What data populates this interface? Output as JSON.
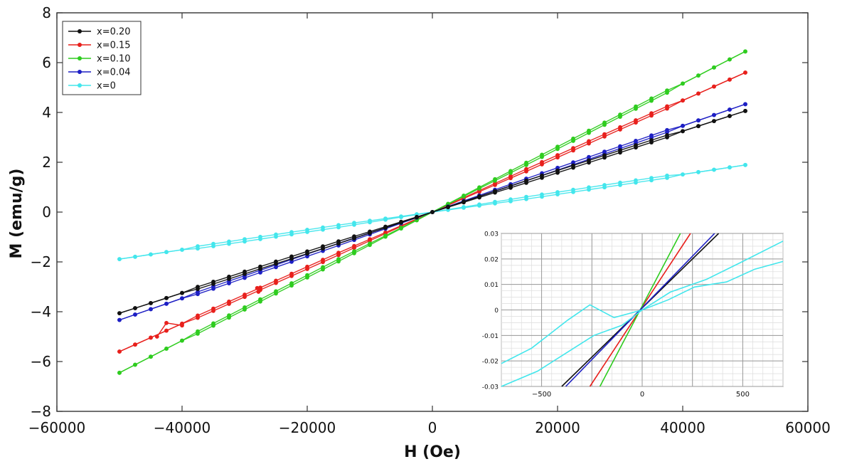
{
  "chart_data": {
    "type": "line",
    "xlabel": "H (Oe)",
    "ylabel": "M (emu/g)",
    "xlim": [
      -60000,
      60000
    ],
    "ylim": [
      -8,
      8
    ],
    "xticks": [
      -60000,
      -40000,
      -20000,
      0,
      20000,
      40000,
      60000
    ],
    "yticks": [
      -8,
      -6,
      -4,
      -2,
      0,
      2,
      4,
      6,
      8
    ],
    "grid": false,
    "legend_position": "top-left",
    "series": [
      {
        "name": "x=0.20",
        "color": "#111111",
        "slope_emu_g_per_Oe": 8.12e-05
      },
      {
        "name": "x=0.15",
        "color": "#e8201c",
        "slope_emu_g_per_Oe": 0.000112
      },
      {
        "name": "x=0.10",
        "color": "#2ecc1f",
        "slope_emu_g_per_Oe": 0.000129
      },
      {
        "name": "x=0.04",
        "color": "#1d1fc4",
        "slope_emu_g_per_Oe": 8.66e-05
      },
      {
        "name": "x=0",
        "color": "#43e6ec",
        "slope_emu_g_per_Oe": 3.78e-05
      }
    ],
    "h_range": [
      -50000,
      50000
    ],
    "anomalies": [
      {
        "series": "x=0.15",
        "x": [
          -44000,
          -42500,
          -40000
        ],
        "y": [
          -5.0,
          -4.45,
          -4.55
        ]
      },
      {
        "series": "x=0.15",
        "x": [
          -28000,
          -27800
        ],
        "y": [
          -3.05,
          -3.2
        ]
      }
    ],
    "inset": {
      "type": "line",
      "xlim": [
        -700,
        700
      ],
      "ylim": [
        -0.03,
        0.03
      ],
      "xticks": [
        -500,
        0,
        500
      ],
      "xtick_labels": [
        "-500",
        "0",
        "500"
      ],
      "yticks": [
        -0.03,
        -0.02,
        -0.01,
        0,
        0.01,
        0.02,
        0.03
      ],
      "ytick_labels": [
        "-0.03",
        "-0.02",
        "-0.01",
        "0",
        "0.01",
        "0.02",
        "0.03"
      ],
      "grid": true,
      "series": [
        {
          "name": "x=0.20",
          "x": [
            -400,
            380
          ],
          "y": [
            -0.03,
            0.03
          ]
        },
        {
          "name": "x=0.15",
          "x": [
            -260,
            240
          ],
          "y": [
            -0.03,
            0.03
          ]
        },
        {
          "name": "x=0.10",
          "x": [
            -210,
            190
          ],
          "y": [
            -0.03,
            0.03
          ]
        },
        {
          "name": "x=0.04",
          "x": [
            -380,
            360
          ],
          "y": [
            -0.03,
            0.03
          ]
        },
        {
          "name": "x=0",
          "x": [
            -700,
            -550,
            -370,
            -260,
            -140,
            0,
            130,
            260,
            420,
            560,
            700
          ],
          "y": [
            -0.021,
            -0.015,
            -0.004,
            0.002,
            -0.003,
            0,
            0.004,
            0.009,
            0.011,
            0.016,
            0.019
          ]
        },
        {
          "name": "x=0",
          "x": [
            -700,
            -520,
            -360,
            -240,
            -100,
            0,
            140,
            320,
            500,
            700
          ],
          "y": [
            -0.03,
            -0.024,
            -0.016,
            -0.01,
            -0.006,
            0,
            0.007,
            0.012,
            0.019,
            0.027
          ]
        }
      ]
    }
  }
}
